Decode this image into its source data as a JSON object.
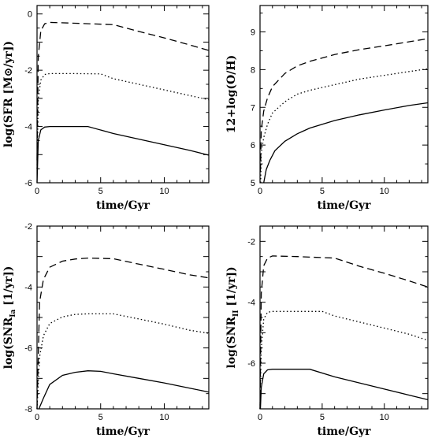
{
  "chart_data": [
    {
      "type": "line",
      "xlabel": "time/Gyr",
      "ylabel": "log(SFR [M⊙/yr])",
      "xlim": [
        0,
        13.5
      ],
      "ylim": [
        -6,
        0.3
      ],
      "xticks": [
        0,
        5,
        10
      ],
      "yticks": [
        -6,
        -4,
        -2,
        0
      ],
      "series": [
        {
          "style": "dashed",
          "x": [
            0,
            0.1,
            0.3,
            0.6,
            1,
            3,
            6,
            8,
            10,
            12,
            13.5
          ],
          "y": [
            -5.2,
            -1.5,
            -0.6,
            -0.35,
            -0.3,
            -0.33,
            -0.38,
            -0.62,
            -0.85,
            -1.1,
            -1.3
          ]
        },
        {
          "style": "dotted",
          "x": [
            0,
            0.1,
            0.3,
            0.6,
            1,
            3,
            5,
            6,
            8,
            10,
            12,
            13.5
          ],
          "y": [
            -5.5,
            -3.0,
            -2.35,
            -2.15,
            -2.12,
            -2.12,
            -2.13,
            -2.3,
            -2.5,
            -2.7,
            -2.9,
            -3.05
          ]
        },
        {
          "style": "solid",
          "x": [
            0,
            0.1,
            0.3,
            0.6,
            1,
            2,
            4,
            6,
            8,
            10,
            12,
            13.5
          ],
          "y": [
            -6.0,
            -4.5,
            -4.12,
            -4.02,
            -4.0,
            -4.0,
            -4.0,
            -4.25,
            -4.45,
            -4.65,
            -4.85,
            -5.02
          ]
        }
      ]
    },
    {
      "type": "line",
      "xlabel": "time/Gyr",
      "ylabel": "12+log(O/H)",
      "xlim": [
        0,
        13.5
      ],
      "ylim": [
        5,
        9.7
      ],
      "xticks": [
        0,
        5,
        10
      ],
      "yticks": [
        5,
        6,
        7,
        8,
        9
      ],
      "series": [
        {
          "style": "dashed",
          "x": [
            0.03,
            0.1,
            0.3,
            0.6,
            1,
            2,
            3,
            4,
            6,
            8,
            10,
            12,
            13.5
          ],
          "y": [
            5.3,
            6.4,
            6.9,
            7.25,
            7.55,
            7.9,
            8.1,
            8.22,
            8.4,
            8.53,
            8.63,
            8.74,
            8.82
          ]
        },
        {
          "style": "dotted",
          "x": [
            0.05,
            0.1,
            0.3,
            0.6,
            1,
            2,
            3,
            4,
            6,
            8,
            10,
            12,
            13.5
          ],
          "y": [
            5.0,
            5.8,
            6.2,
            6.55,
            6.85,
            7.15,
            7.35,
            7.45,
            7.6,
            7.75,
            7.85,
            7.95,
            8.02
          ]
        },
        {
          "style": "solid",
          "x": [
            0.3,
            0.5,
            0.8,
            1.2,
            2,
            3,
            4,
            6,
            8,
            10,
            12,
            13.5
          ],
          "y": [
            5.0,
            5.35,
            5.6,
            5.85,
            6.1,
            6.3,
            6.45,
            6.65,
            6.8,
            6.93,
            7.05,
            7.12
          ]
        }
      ]
    },
    {
      "type": "line",
      "xlabel": "time/Gyr",
      "ylabel": "log(SNR",
      "ylabel_sub": "Ia",
      "ylabel_end": " [1/yr])",
      "xlim": [
        0,
        13.5
      ],
      "ylim": [
        -8,
        -2
      ],
      "xticks": [
        0,
        5,
        10
      ],
      "yticks": [
        -8,
        -6,
        -4,
        -2
      ],
      "series": [
        {
          "style": "dashed",
          "x": [
            0,
            0.2,
            0.5,
            1,
            2,
            3,
            4,
            6,
            8,
            10,
            12,
            13.5
          ],
          "y": [
            -8.0,
            -4.5,
            -3.75,
            -3.35,
            -3.15,
            -3.08,
            -3.05,
            -3.07,
            -3.25,
            -3.42,
            -3.6,
            -3.7
          ]
        },
        {
          "style": "dotted",
          "x": [
            0,
            0.2,
            0.5,
            1,
            2,
            3,
            4,
            6,
            8,
            10,
            12,
            13.5
          ],
          "y": [
            -8.0,
            -6.3,
            -5.6,
            -5.2,
            -4.98,
            -4.9,
            -4.88,
            -4.88,
            -5.05,
            -5.22,
            -5.42,
            -5.52
          ]
        },
        {
          "style": "solid",
          "x": [
            0.15,
            0.5,
            1,
            2,
            3,
            4,
            5,
            6,
            8,
            10,
            12,
            13.5
          ],
          "y": [
            -8.0,
            -7.65,
            -7.2,
            -6.9,
            -6.8,
            -6.75,
            -6.77,
            -6.85,
            -7.0,
            -7.15,
            -7.32,
            -7.45
          ]
        }
      ]
    },
    {
      "type": "line",
      "xlabel": "time/Gyr",
      "ylabel": "log(SNR",
      "ylabel_sub": "II",
      "ylabel_end": " [1/yr])",
      "xlim": [
        0,
        13.5
      ],
      "ylim": [
        -7.5,
        -1.5
      ],
      "xticks": [
        0,
        5,
        10
      ],
      "yticks": [
        -6,
        -4,
        -2
      ],
      "series": [
        {
          "style": "dashed",
          "x": [
            0,
            0.1,
            0.3,
            0.6,
            1,
            3,
            6,
            8,
            10,
            12,
            13.5
          ],
          "y": [
            -7.5,
            -3.7,
            -2.8,
            -2.55,
            -2.48,
            -2.5,
            -2.55,
            -2.82,
            -3.05,
            -3.3,
            -3.5
          ]
        },
        {
          "style": "dotted",
          "x": [
            0,
            0.1,
            0.3,
            0.6,
            1,
            3,
            5,
            6,
            8,
            10,
            12,
            13.5
          ],
          "y": [
            -7.5,
            -5.5,
            -4.55,
            -4.33,
            -4.3,
            -4.3,
            -4.3,
            -4.45,
            -4.65,
            -4.85,
            -5.05,
            -5.25
          ]
        },
        {
          "style": "solid",
          "x": [
            0.03,
            0.1,
            0.3,
            0.6,
            1,
            2,
            4,
            6,
            8,
            10,
            12,
            13.5
          ],
          "y": [
            -7.5,
            -6.8,
            -6.35,
            -6.22,
            -6.2,
            -6.2,
            -6.2,
            -6.45,
            -6.65,
            -6.85,
            -7.05,
            -7.2
          ]
        }
      ]
    }
  ]
}
